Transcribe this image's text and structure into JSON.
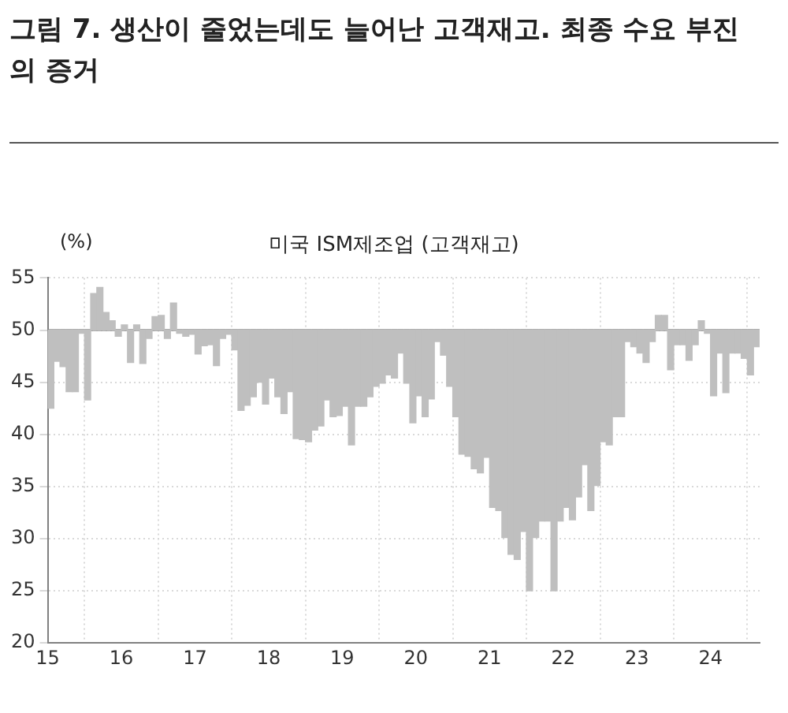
{
  "chart_data": {
    "type": "bar",
    "title": "그림 7. 생산이 줄었는데도 늘어난 고객재고. 최종 수요 부진의 증거",
    "subtitle": "미국 ISM제조업 (고객재고)",
    "ylabel": "(%)",
    "x": [
      "2015-01",
      "2015-02",
      "2015-03",
      "2015-04",
      "2015-05",
      "2015-06",
      "2015-07",
      "2015-08",
      "2015-09",
      "2015-10",
      "2015-11",
      "2015-12",
      "2016-01",
      "2016-02",
      "2016-03",
      "2016-04",
      "2016-05",
      "2016-06",
      "2016-07",
      "2016-08",
      "2016-09",
      "2016-10",
      "2016-11",
      "2016-12",
      "2017-01",
      "2017-02",
      "2017-03",
      "2017-04",
      "2017-05",
      "2017-06",
      "2017-07",
      "2017-08",
      "2017-09",
      "2017-10",
      "2017-11",
      "2017-12",
      "2018-01",
      "2018-02",
      "2018-03",
      "2018-04",
      "2018-05",
      "2018-06",
      "2018-07",
      "2018-08",
      "2018-09",
      "2018-10",
      "2018-11",
      "2018-12",
      "2019-01",
      "2019-02",
      "2019-03",
      "2019-04",
      "2019-05",
      "2019-06",
      "2019-07",
      "2019-08",
      "2019-09",
      "2019-10",
      "2019-11",
      "2019-12",
      "2020-01",
      "2020-02",
      "2020-03",
      "2020-04",
      "2020-05",
      "2020-06",
      "2020-07",
      "2020-08",
      "2020-09",
      "2020-10",
      "2020-11",
      "2020-12",
      "2021-01",
      "2021-02",
      "2021-03",
      "2021-04",
      "2021-05",
      "2021-06",
      "2021-07",
      "2021-08",
      "2021-09",
      "2021-10",
      "2021-11",
      "2021-12",
      "2022-01",
      "2022-02",
      "2022-03",
      "2022-04",
      "2022-05",
      "2022-06",
      "2022-07",
      "2022-08",
      "2022-09",
      "2022-10",
      "2022-11",
      "2022-12",
      "2023-01",
      "2023-02",
      "2023-03",
      "2023-04",
      "2023-05",
      "2023-06",
      "2023-07",
      "2023-08",
      "2023-09",
      "2023-10",
      "2023-11",
      "2023-12",
      "2024-01",
      "2024-02",
      "2024-03",
      "2024-04",
      "2024-05",
      "2024-06",
      "2024-07",
      "2024-08"
    ],
    "base": [
      50,
      50,
      50,
      50,
      50,
      50,
      50,
      50,
      50,
      50,
      50,
      50,
      50,
      50,
      50,
      50,
      50,
      50,
      50,
      50,
      50,
      50,
      50,
      50,
      50,
      50,
      50,
      50,
      50,
      50,
      50,
      50,
      50,
      50,
      50,
      50,
      50,
      50,
      50,
      50,
      50,
      50,
      50,
      50,
      50,
      50,
      50,
      50,
      50,
      50,
      50,
      50,
      50,
      50,
      50,
      50,
      50,
      50,
      50,
      50,
      50,
      50,
      50,
      50,
      50,
      50,
      50,
      50,
      50,
      50,
      50,
      50,
      50,
      50,
      50,
      50,
      50,
      50,
      50,
      50,
      50,
      50,
      50,
      50,
      50,
      50,
      50,
      50,
      50,
      50,
      50,
      50,
      50,
      50,
      50,
      50,
      50,
      50,
      50,
      50,
      50,
      50,
      50,
      50,
      50,
      50,
      50,
      50,
      50,
      50,
      50,
      50,
      50,
      50,
      50,
      50
    ],
    "values": [
      -7.5,
      -3,
      -3.5,
      -5.9,
      -5.9,
      -0.3,
      -6.7,
      3.5,
      4.1,
      1.7,
      0.9,
      -0.6,
      0.5,
      -3.1,
      0.5,
      -3.2,
      -0.8,
      1.3,
      1.4,
      -0.8,
      2.6,
      -0.3,
      -0.6,
      -0.4,
      -2.3,
      -1.5,
      -1.4,
      -3.4,
      -0.8,
      -0.4,
      -1.9,
      -7.7,
      -7.2,
      -6.4,
      -5,
      -7.1,
      -4.6,
      -6.4,
      -8,
      -5.9,
      -10.4,
      -10.5,
      -10.7,
      -9.6,
      -9.2,
      -6.7,
      -8.3,
      -8.2,
      -7.3,
      -11,
      -7.3,
      -7.3,
      -6.4,
      -5.4,
      -5.1,
      -4.3,
      -4.6,
      -2.2,
      -5.1,
      -8.9,
      -6.3,
      -8.3,
      -6.6,
      -1.1,
      -2.4,
      -5.4,
      -8.3,
      -11.9,
      -12.1,
      -13.3,
      -13.7,
      -12.2,
      -17,
      -17.3,
      -19.9,
      -21.5,
      -22,
      -19.3,
      -25,
      -19.9,
      -18.3,
      -18.3,
      -25,
      -18.3,
      -17,
      -18.2,
      -16,
      -12.9,
      -17.3,
      -14.9,
      -10.7,
      -11,
      -8.3,
      -8.3,
      -1.1,
      -1.6,
      -2.2,
      -3.1,
      -1.1,
      1.4,
      1.4,
      -3.8,
      -1.4,
      -1.4,
      -2.9,
      -1.4,
      0.9,
      -0.3,
      -6.3,
      -2.2,
      -6,
      -2.2,
      -2.2,
      -2.7,
      -4.3,
      -1.6
    ],
    "color": "#bfbfbf",
    "xlim": [
      "2015-01",
      "2024-09"
    ],
    "xticks": [
      {
        "value": "2015-01",
        "label": "15"
      },
      {
        "value": "2016-01",
        "label": "16"
      },
      {
        "value": "2017-01",
        "label": "17"
      },
      {
        "value": "2018-01",
        "label": "18"
      },
      {
        "value": "2019-01",
        "label": "19"
      },
      {
        "value": "2020-01",
        "label": "20"
      },
      {
        "value": "2021-01",
        "label": "21"
      },
      {
        "value": "2022-01",
        "label": "22"
      },
      {
        "value": "2023-01",
        "label": "23"
      },
      {
        "value": "2024-01",
        "label": "24"
      }
    ],
    "ylim": [
      20,
      55
    ],
    "yticks": [
      20,
      25,
      30,
      35,
      40,
      45,
      50,
      55
    ],
    "ref_lines": [
      {
        "axis": "y",
        "value": 50,
        "color": "#595959"
      }
    ],
    "grid": true,
    "legend": false
  }
}
